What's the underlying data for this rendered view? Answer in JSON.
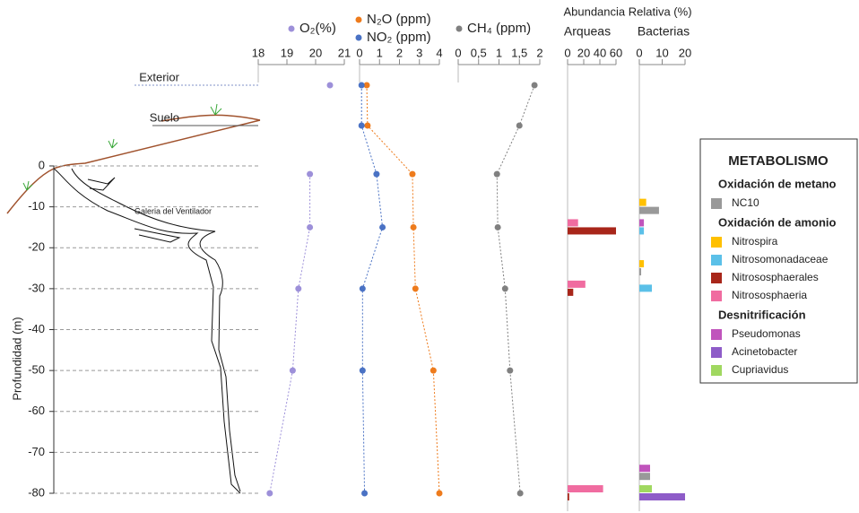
{
  "chart_data": {
    "type": "profile",
    "ylabel": "Profundidad (m)",
    "ylim": [
      -80,
      0
    ],
    "yticks": [
      0,
      -10,
      -20,
      -30,
      -40,
      -50,
      -60,
      -70,
      -80
    ],
    "grid": true,
    "samples": [
      {
        "label": "Exterior"
      },
      {
        "label": "Suelo"
      },
      {
        "depth": -2
      },
      {
        "depth": -15
      },
      {
        "depth": -30
      },
      {
        "depth": -50
      },
      {
        "depth": -80
      }
    ],
    "annotation": "Galeria del Ventilador",
    "line_panels": [
      {
        "xlim": [
          18,
          21
        ],
        "xticks": [
          18,
          19,
          20,
          21
        ],
        "series": [
          {
            "name": "O₂(%)",
            "color": "#9d90d9",
            "values": [
              20.5,
              null,
              19.8,
              19.8,
              19.4,
              19.2,
              18.4
            ]
          }
        ]
      },
      {
        "xlim": [
          0,
          4
        ],
        "xticks": [
          0,
          1,
          2,
          3,
          4
        ],
        "series": [
          {
            "name": "N₂O (ppm)",
            "color": "#ee7b1c",
            "values": [
              0.36,
              0.4,
              2.65,
              2.7,
              2.8,
              3.7,
              4.0
            ]
          },
          {
            "name": "NO₂ (ppm)",
            "color": "#4a72c4",
            "values": [
              0.1,
              0.1,
              0.85,
              1.15,
              0.15,
              0.15,
              0.25
            ]
          }
        ]
      },
      {
        "xlim": [
          0,
          2
        ],
        "xticks": [
          0,
          {
            "value": 0.5,
            "label": "0,5"
          },
          1,
          {
            "value": 1.5,
            "label": "1,5"
          },
          2
        ],
        "series": [
          {
            "name": "CH₄ (ppm)",
            "color": "#808080",
            "values": [
              1.87,
              1.5,
              0.95,
              0.97,
              1.15,
              1.27,
              1.52
            ]
          }
        ]
      }
    ],
    "bar_title": "Abundancia Relativa (%)",
    "bar_panels": [
      {
        "title": "Arqueas",
        "xlim": [
          0,
          60
        ],
        "xticks": [
          0,
          20,
          40,
          60
        ]
      },
      {
        "title": "Bacterias",
        "xlim": [
          0,
          20
        ],
        "xticks": [
          0,
          10,
          20
        ]
      }
    ],
    "bar_depths": [
      -10,
      -15,
      -25,
      -30,
      -75,
      -80
    ],
    "legend": {
      "title": "METABOLISMO",
      "groups": [
        {
          "title": "Oxidación de metano",
          "taxa": [
            {
              "name": "NC10",
              "color": "#999999",
              "panel": 1,
              "values": [
                8.6,
                null,
                0.8,
                null,
                4.7,
                null
              ]
            }
          ]
        },
        {
          "title": "Oxidación de amonio",
          "taxa": [
            {
              "name": "Nitrospira",
              "color": "#ffc000",
              "panel": 1,
              "values": [
                3,
                null,
                2,
                null,
                null,
                null
              ]
            },
            {
              "name": "Nitrosomonadaceae",
              "color": "#5bc0e8",
              "panel": 1,
              "values": [
                null,
                2,
                null,
                5.5,
                null,
                null
              ]
            },
            {
              "name": "Nitrososphaerales",
              "color": "#a8261a",
              "panel": 0,
              "values": [
                null,
                60,
                null,
                7,
                null,
                2
              ]
            },
            {
              "name": "Nitrososphaeria",
              "color": "#f06ca0",
              "panel": 0,
              "values": [
                null,
                13,
                null,
                22,
                null,
                44
              ]
            }
          ]
        },
        {
          "title": "Desnitrificación",
          "taxa": [
            {
              "name": "Pseudomonas",
              "color": "#c054bc",
              "panel": 1,
              "values": [
                null,
                2,
                null,
                null,
                4.7,
                null
              ]
            },
            {
              "name": "Acinetobacter",
              "color": "#8e5cc8",
              "panel": 1,
              "values": [
                null,
                null,
                null,
                null,
                null,
                20
              ]
            },
            {
              "name": "Cupriavidus",
              "color": "#a0d860",
              "panel": 1,
              "values": [
                null,
                null,
                null,
                null,
                null,
                5.5
              ]
            }
          ]
        }
      ]
    }
  }
}
